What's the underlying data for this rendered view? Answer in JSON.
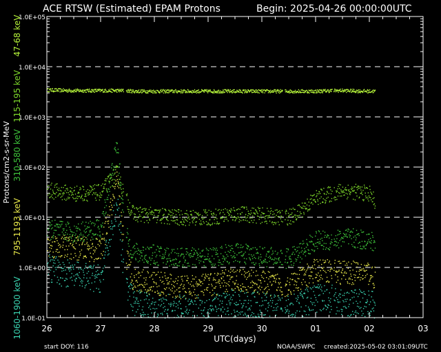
{
  "header": {
    "title": "ACE RTSW (Estimated) EPAM Protons",
    "begin": "Begin: 2025-04-26 00:00:00UTC"
  },
  "footer": {
    "start_doy": "start DOY:  116",
    "source": "NOAA/SWPC",
    "created": "created:2025-05-02 03:01:09UTC"
  },
  "colors": {
    "background": "#000000",
    "axes": "#ffffff",
    "gridline": "#ffffff",
    "ch_47_68": "#b6f53a",
    "ch_115_195": "#7cd62a",
    "ch_310_580": "#3ec23a",
    "ch_795_1193": "#e8e84a",
    "ch_1060_1900": "#3ad3b0"
  },
  "chart_data": {
    "type": "scatter",
    "title": "ACE RTSW (Estimated) EPAM Protons",
    "subtitle": "Begin: 2025-04-26 00:00:00UTC",
    "xlabel": "UTC(days)",
    "ylabel": "Protons/cm2-s-sr-MeV",
    "y_scale": "log",
    "ylim": [
      0.1,
      100000
    ],
    "xlim": [
      "2025-04-26",
      "2025-05-03"
    ],
    "x_ticks": [
      "26",
      "27",
      "28",
      "29",
      "30",
      "01",
      "02",
      "03"
    ],
    "y_ticks": [
      "1.0E-01",
      "1.0E+00",
      "1.0E+01",
      "1.0E+02",
      "1.0E+03",
      "1.0E+04",
      "1.0E+05"
    ],
    "gridlines_y": [
      1,
      10,
      100,
      1000,
      10000
    ],
    "grid": "horizontal dashed",
    "legend_placement": "left, vertical along y-axis",
    "x_days": [
      0,
      0.5,
      1.0,
      1.3,
      1.45,
      1.6,
      2.0,
      2.5,
      3.0,
      3.5,
      4.0,
      4.4,
      4.6,
      5.0,
      5.3,
      5.5,
      6.0,
      6.1
    ],
    "series": [
      {
        "name": "47-68 keV",
        "color": "#b6f53a",
        "values": [
          3500,
          3400,
          3400,
          3400,
          3400,
          3300,
          3300,
          3300,
          3300,
          3300,
          3300,
          3300,
          3300,
          3300,
          3400,
          3400,
          3300,
          3300
        ]
      },
      {
        "name": "115-195 keV",
        "color": "#7cd62a",
        "values": [
          35,
          30,
          32,
          80,
          25,
          12,
          11,
          10,
          10,
          12,
          11,
          10,
          11,
          25,
          30,
          35,
          30,
          20
        ]
      },
      {
        "name": "310-580 keV",
        "color": "#3ec23a",
        "values": [
          6,
          5,
          6,
          300,
          5,
          2,
          1.8,
          1.6,
          1.6,
          2,
          1.7,
          1.5,
          1.7,
          3.5,
          3.5,
          4,
          3.5,
          3
        ]
      },
      {
        "name": "795-1193 keV",
        "color": "#e8e84a",
        "values": [
          2.8,
          2.5,
          2.2,
          50,
          2,
          0.6,
          0.5,
          0.4,
          0.45,
          0.6,
          0.5,
          0.45,
          0.5,
          0.9,
          0.9,
          0.8,
          0.8,
          0.6
        ]
      },
      {
        "name": "1060-1900 keV",
        "color": "#3ad3b0",
        "values": [
          1.0,
          0.7,
          0.6,
          20,
          0.5,
          0.2,
          0.17,
          0.15,
          0.16,
          0.2,
          0.17,
          0.15,
          0.17,
          0.25,
          0.25,
          0.2,
          0.2,
          0.17
        ]
      }
    ]
  }
}
